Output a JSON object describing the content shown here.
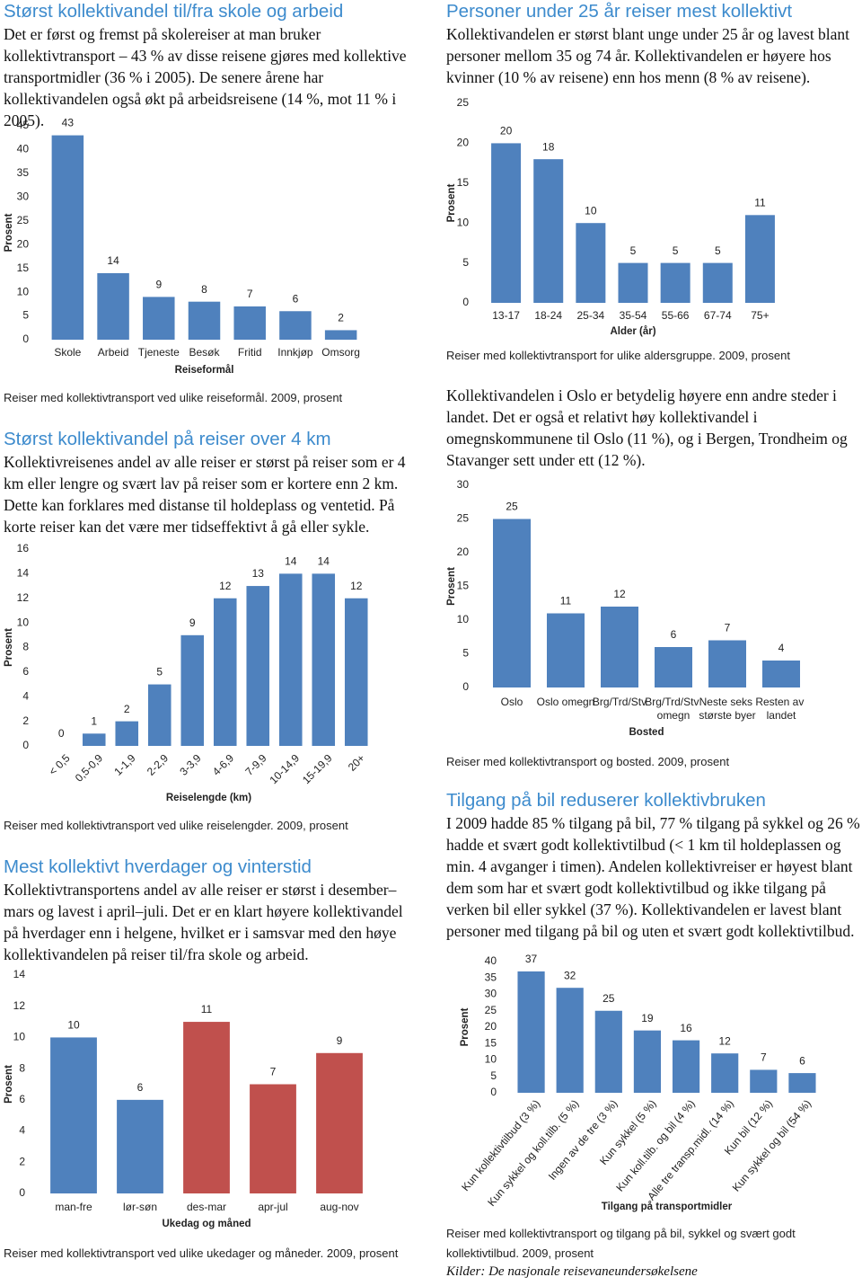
{
  "sections": [
    {
      "heading": "Størst kollektivandel til/fra skole og arbeid",
      "body": "Det er først og fremst på skolereiser at man bruker kollektivtransport – 43 % av disse reisene gjøres med kollektive transportmidler (36 % i 2005). De senere årene har kollektivandelen også økt på arbeidsreisene (14 %, mot 11 % i 2005)."
    },
    {
      "heading": "Personer under 25 år reiser mest kollektivt",
      "body": "Kollektivandelen er størst blant unge under 25 år og lavest blant personer mellom 35 og 74 år. Kollektivandelen er høyere hos kvinner (10 % av reisene) enn hos menn (8 % av reisene)."
    },
    {
      "heading": "Størst kollektivandel på reiser over 4 km",
      "body": "Kollektivreisenes andel av alle reiser er størst på reiser som er 4 km eller lengre og svært lav på reiser som er kortere enn 2 km. Dette kan forklares med distanse til holdeplass og ventetid. På korte reiser kan det være mer tidseffektivt å gå eller sykle."
    },
    {
      "body": "Kollektivandelen i Oslo er betydelig høyere enn andre steder i landet. Det er også et relativt høy kollektivandel i omegnskommunene til Oslo (11 %), og i Bergen, Trondheim og Stavanger sett under ett (12 %)."
    },
    {
      "heading": "Mest kollektivt hverdager og vinterstid",
      "body": "Kollektivtransportens andel av alle reiser er størst i desember–mars og lavest i april–juli. Det er en klart høyere kollektivandel på hverdager enn i helgene, hvilket er i samsvar med den høye kollektivandelen på reiser til/fra skole og arbeid."
    },
    {
      "heading": "Tilgang på bil reduserer kollektivbruken",
      "body": "I 2009 hadde 85 % tilgang på bil, 77 % tilgang på sykkel og 26 % hadde et svært godt kollektivtilbud (< 1 km til holdeplassen og min. 4 avganger i timen). Andelen kollektivreiser er høyest blant dem som har et svært godt kollektivtilbud og ikke tilgang på verken bil eller sykkel (37 %). Kollektivandelen er lavest blant personer med tilgang på bil og uten et svært godt kollektivtilbud."
    }
  ],
  "chart_data": [
    {
      "type": "bar",
      "caption": "Reiser med kollektivtransport ved ulike reiseformål. 2009, prosent",
      "ylabel": "Prosent",
      "xlabel": "Reiseformål",
      "categories": [
        "Skole",
        "Arbeid",
        "Tjeneste",
        "Besøk",
        "Fritid",
        "Innkjøp",
        "Omsorg"
      ],
      "values": [
        43,
        14,
        9,
        8,
        7,
        6,
        2
      ],
      "color": "#4f81bd",
      "ylim": [
        0,
        45
      ],
      "yticks": [
        0,
        5,
        10,
        15,
        20,
        25,
        30,
        35,
        40,
        45
      ]
    },
    {
      "type": "bar",
      "caption": "Reiser med kollektivtransport for ulike aldersgruppe. 2009, prosent",
      "ylabel": "Prosent",
      "xlabel": "Alder (år)",
      "categories": [
        "13-17",
        "18-24",
        "25-34",
        "35-54",
        "55-66",
        "67-74",
        "75+"
      ],
      "values": [
        20,
        18,
        10,
        5,
        5,
        5,
        11
      ],
      "color": "#4f81bd",
      "ylim": [
        0,
        25
      ],
      "yticks": [
        0,
        5,
        10,
        15,
        20,
        25
      ]
    },
    {
      "type": "bar",
      "caption": "Reiser med kollektivtransport ved ulike reiselengder. 2009, prosent",
      "ylabel": "Prosent",
      "xlabel": "Reiselengde (km)",
      "categories": [
        "< 0,5",
        "0,5-0,9",
        "1-1,9",
        "2-2,9",
        "3-3,9",
        "4-6,9",
        "7-9,9",
        "10-14,9",
        "15-19,9",
        "20+"
      ],
      "values": [
        0,
        1,
        2,
        5,
        9,
        12,
        13,
        14,
        14,
        12
      ],
      "color": "#4f81bd",
      "ylim": [
        0,
        16
      ],
      "yticks": [
        0,
        2,
        4,
        6,
        8,
        10,
        12,
        14,
        16
      ],
      "xtick_rotation": -45
    },
    {
      "type": "bar",
      "caption": "Reiser med kollektivtransport og bosted. 2009, prosent",
      "ylabel": "Prosent",
      "xlabel": "Bosted",
      "categories": [
        "Oslo",
        "Oslo omegn",
        "Brg/Trd/Stv",
        "Brg/Trd/Stv omegn",
        "Neste seks største byer",
        "Resten av landet"
      ],
      "values": [
        25,
        11,
        12,
        6,
        7,
        4
      ],
      "color": "#4f81bd",
      "ylim": [
        0,
        30
      ],
      "yticks": [
        0,
        5,
        10,
        15,
        20,
        25,
        30
      ]
    },
    {
      "type": "bar",
      "caption": "Reiser med kollektivtransport ved ulike ukedager og måneder. 2009, prosent",
      "ylabel": "Prosent",
      "xlabel": "Ukedag og måned",
      "categories": [
        "man-fre",
        "lør-søn",
        "des-mar",
        "apr-jul",
        "aug-nov"
      ],
      "values": [
        10,
        6,
        11,
        7,
        9
      ],
      "colors": [
        "#4f81bd",
        "#4f81bd",
        "#c0504d",
        "#c0504d",
        "#c0504d"
      ],
      "ylim": [
        0,
        14
      ],
      "yticks": [
        0,
        2,
        4,
        6,
        8,
        10,
        12,
        14
      ]
    },
    {
      "type": "bar",
      "caption": "Reiser med kollektivtransport og tilgang på bil, sykkel og svært godt kollektivtilbud. 2009, prosent",
      "ylabel": "Prosent",
      "xlabel": "Tilgang på transportmidler",
      "categories": [
        "Kun kollektivtilbud (3 %)",
        "Kun sykkel og koll.tilb. (5 %)",
        "Ingen av de tre (3 %)",
        "Kun sykkel (5 %)",
        "Kun koll.tilb. og bil (4 %)",
        "Alle tre transp.midl. (14 %)",
        "Kun bil (12 %)",
        "Kun sykkel og bil (54 %)"
      ],
      "values": [
        37,
        32,
        25,
        19,
        16,
        12,
        7,
        6
      ],
      "color": "#4f81bd",
      "ylim": [
        0,
        40
      ],
      "yticks": [
        0,
        5,
        10,
        15,
        20,
        25,
        30,
        35,
        40
      ],
      "xtick_rotation": -50
    }
  ],
  "source": "Kilder: De nasjonale reisevaneundersøkelsene"
}
